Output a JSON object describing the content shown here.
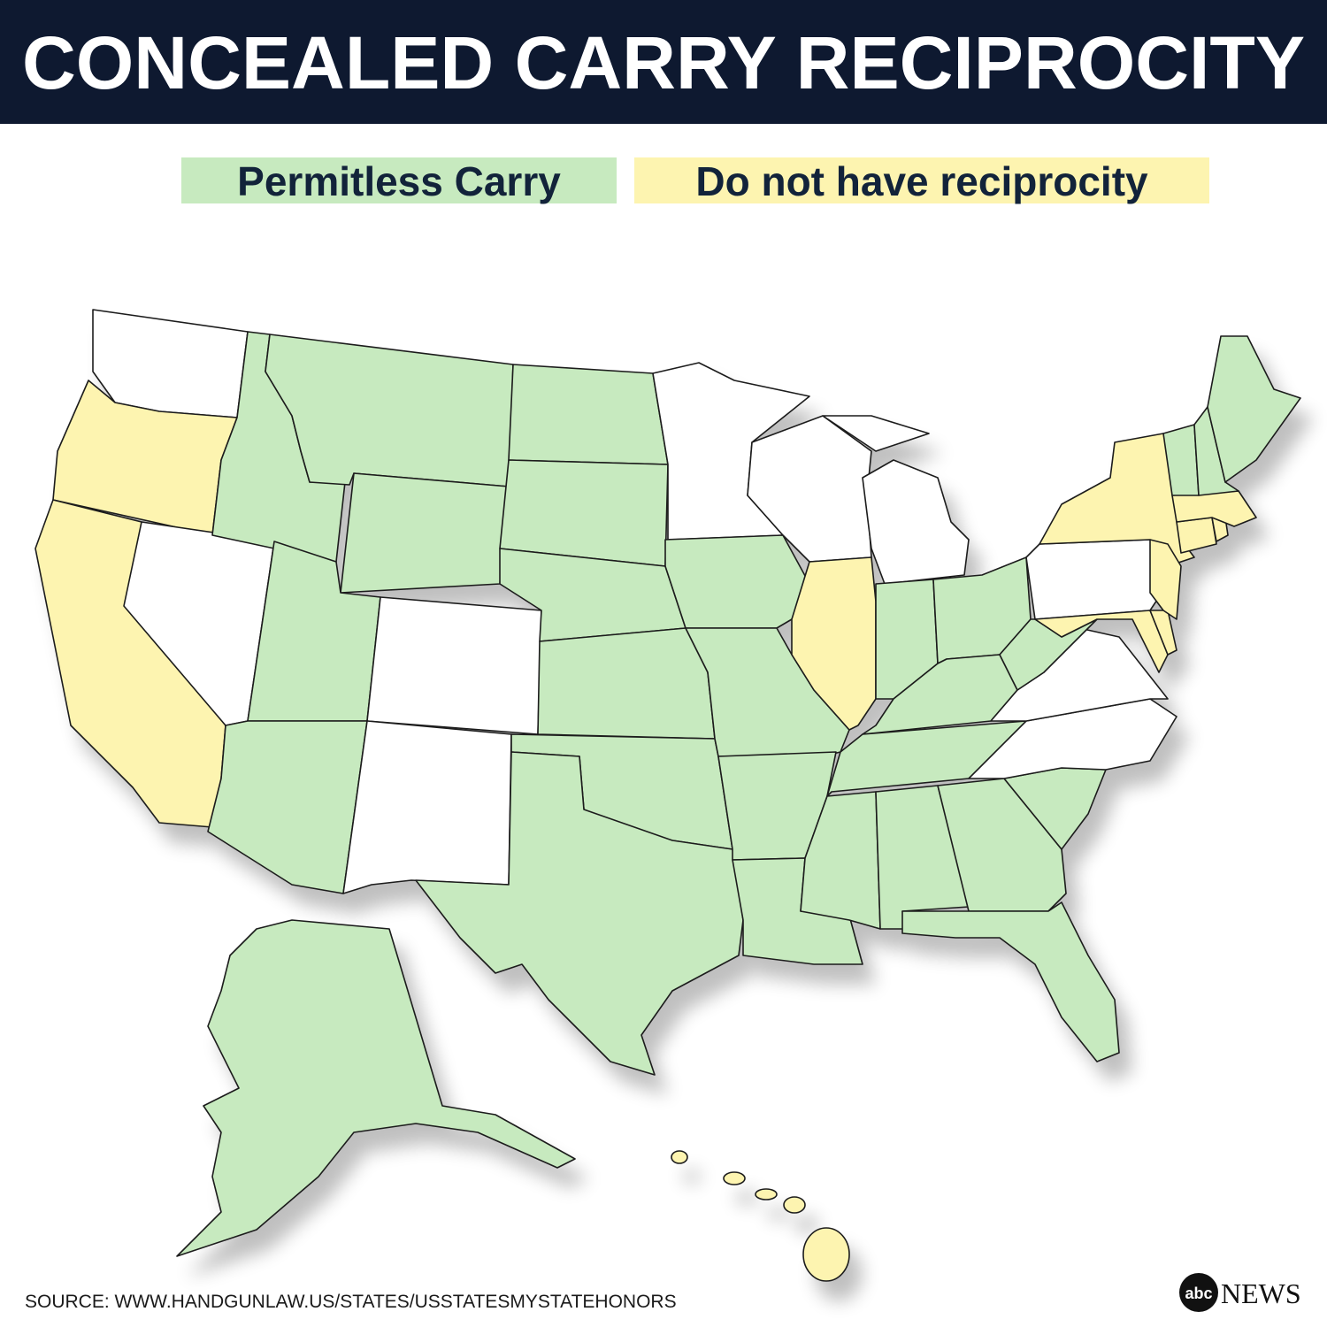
{
  "header": {
    "title": "CONCEALED CARRY RECIPROCITY"
  },
  "legend": {
    "items": [
      {
        "label": "Permitless Carry"
      },
      {
        "label": "Do not have reciprocity"
      }
    ]
  },
  "footer": {
    "source": "SOURCE: WWW.HANDGUNLAW.US/STATES/USSTATESMYSTATEHONORS",
    "logo": {
      "mark": "abc",
      "text": "NEWS"
    }
  }
}
